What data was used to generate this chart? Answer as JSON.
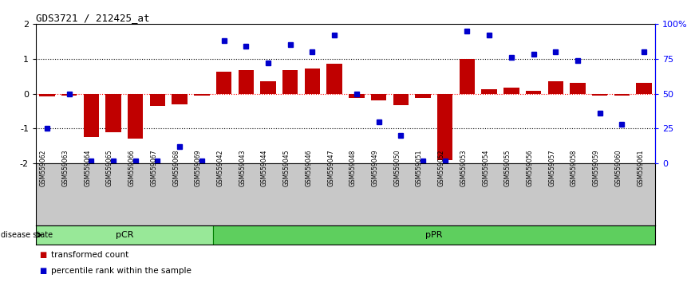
{
  "title": "GDS3721 / 212425_at",
  "samples": [
    "GSM559062",
    "GSM559063",
    "GSM559064",
    "GSM559065",
    "GSM559066",
    "GSM559067",
    "GSM559068",
    "GSM559069",
    "GSM559042",
    "GSM559043",
    "GSM559044",
    "GSM559045",
    "GSM559046",
    "GSM559047",
    "GSM559048",
    "GSM559049",
    "GSM559050",
    "GSM559051",
    "GSM559052",
    "GSM559053",
    "GSM559054",
    "GSM559055",
    "GSM559056",
    "GSM559057",
    "GSM559058",
    "GSM559059",
    "GSM559060",
    "GSM559061"
  ],
  "bar_values": [
    -0.08,
    -0.05,
    -1.25,
    -1.1,
    -1.3,
    -0.35,
    -0.3,
    -0.05,
    0.62,
    0.68,
    0.35,
    0.68,
    0.72,
    0.85,
    -0.12,
    -0.2,
    -0.32,
    -0.12,
    -1.9,
    1.0,
    0.12,
    0.18,
    0.08,
    0.35,
    0.3,
    -0.05,
    -0.05,
    0.3
  ],
  "percentile_values": [
    25,
    50,
    2,
    2,
    2,
    2,
    12,
    2,
    88,
    84,
    72,
    85,
    80,
    92,
    50,
    30,
    20,
    2,
    2,
    95,
    92,
    76,
    78,
    80,
    74,
    36,
    28,
    80
  ],
  "pCR_count": 8,
  "pPR_count": 20,
  "ylim_left": [
    -2,
    2
  ],
  "ylim_right": [
    0,
    100
  ],
  "bar_color": "#c00000",
  "dot_color": "#0000cc",
  "background_color": "#ffffff",
  "pCR_color": "#98e898",
  "pPR_color": "#5ecf5e",
  "legend_bar_label": "transformed count",
  "legend_dot_label": "percentile rank within the sample",
  "label_bg_color": "#c8c8c8"
}
